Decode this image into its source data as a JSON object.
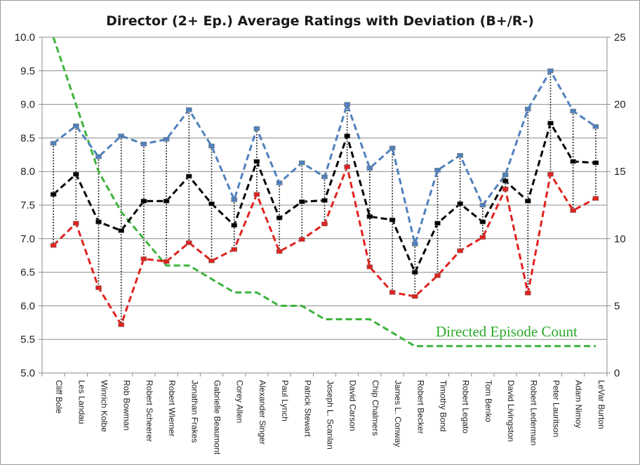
{
  "chart_data": {
    "type": "line",
    "title": "Director (2+ Ep.) Average Ratings with Deviation (B+/R-)",
    "annotation": "Directed Episode Count",
    "categories": [
      "Cliff Bole",
      "Les Landau",
      "Winrich Kolbe",
      "Rob Bowman",
      "Robert Scheerer",
      "Robert Wiemer",
      "Jonathan Frakes",
      "Gabrielle Beaumont",
      "Corey Allen",
      "Alexander Singer",
      "Paul Lynch",
      "Patrick Stewart",
      "Joseph L. Scanlan",
      "David Carson",
      "Chip Chalmers",
      "James L. Conway",
      "Robert Becker",
      "Timothy Bond",
      "Robert Legato",
      "Tom Benko",
      "David Livingston",
      "Robert Lederman",
      "Peter Lauritson",
      "Adam Nimoy",
      "LeVar Burton"
    ],
    "y_left": {
      "min": 5.0,
      "max": 10.0,
      "ticks": [
        "5.0",
        "5.5",
        "6.0",
        "6.5",
        "7.0",
        "7.5",
        "8.0",
        "8.5",
        "9.0",
        "9.5",
        "10.0"
      ]
    },
    "y_right": {
      "min": 0,
      "max": 25,
      "ticks": [
        "0",
        "5",
        "10",
        "15",
        "20",
        "25"
      ]
    },
    "grid": "horizontal",
    "legend": "none",
    "series": [
      {
        "axis": "left",
        "color": "#4f81bd",
        "style": "dashed",
        "values": [
          8.42,
          8.68,
          8.22,
          8.53,
          8.41,
          8.48,
          8.92,
          8.38,
          7.58,
          8.64,
          7.83,
          8.13,
          7.92,
          9.0,
          8.05,
          8.35,
          6.92,
          8.02,
          8.24,
          7.5,
          7.95,
          8.93,
          9.5,
          8.9,
          8.67
        ]
      },
      {
        "axis": "left",
        "color": "#000000",
        "style": "dashed",
        "values": [
          7.66,
          7.96,
          7.25,
          7.12,
          7.56,
          7.56,
          7.93,
          7.52,
          7.2,
          8.15,
          7.31,
          7.55,
          7.57,
          8.53,
          7.33,
          7.28,
          6.5,
          7.23,
          7.52,
          7.25,
          7.86,
          7.56,
          8.72,
          8.15,
          8.13
        ]
      },
      {
        "axis": "left",
        "color": "#e0221e",
        "style": "dashed",
        "values": [
          6.9,
          7.23,
          6.27,
          5.72,
          6.7,
          6.66,
          6.94,
          6.67,
          6.84,
          7.66,
          6.81,
          6.99,
          7.22,
          8.07,
          6.58,
          6.2,
          6.14,
          6.45,
          6.82,
          7.02,
          7.74,
          6.19,
          7.96,
          7.42,
          7.6
        ]
      },
      {
        "axis": "right",
        "color": "#3cb43c",
        "style": "dashed",
        "values": [
          25,
          20,
          15,
          12,
          10,
          8,
          8,
          7,
          6,
          6,
          5,
          5,
          4,
          4,
          4,
          3,
          2,
          2,
          2,
          2,
          2,
          2,
          2,
          2,
          2
        ]
      }
    ]
  }
}
